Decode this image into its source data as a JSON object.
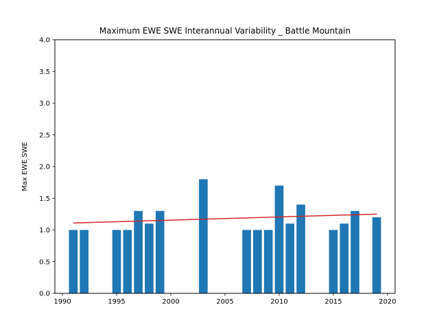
{
  "chart_data": {
    "type": "bar",
    "title": "Maximum EWE SWE Interannual Variability _ Battle Mountain",
    "xlabel": "",
    "ylabel": "Max EWE SWE",
    "xlim": [
      1989.3,
      2020.7
    ],
    "ylim": [
      0,
      4.0
    ],
    "x_ticks": [
      1990,
      1995,
      2000,
      2005,
      2010,
      2015,
      2020
    ],
    "y_ticks": [
      0.0,
      0.5,
      1.0,
      1.5,
      2.0,
      2.5,
      3.0,
      3.5,
      4.0
    ],
    "x_tick_labels": [
      "1990",
      "1995",
      "2000",
      "2005",
      "2010",
      "2015",
      "2020"
    ],
    "y_tick_labels": [
      "0.0",
      "0.5",
      "1.0",
      "1.5",
      "2.0",
      "2.5",
      "3.0",
      "3.5",
      "4.0"
    ],
    "bar_color": "#1f77b4",
    "bar_width": 0.8,
    "bars": [
      {
        "x": 1991,
        "value": 1.0
      },
      {
        "x": 1992,
        "value": 1.0
      },
      {
        "x": 1995,
        "value": 1.0
      },
      {
        "x": 1996,
        "value": 1.0
      },
      {
        "x": 1997,
        "value": 1.3
      },
      {
        "x": 1998,
        "value": 1.1
      },
      {
        "x": 1999,
        "value": 1.3
      },
      {
        "x": 2003,
        "value": 1.8
      },
      {
        "x": 2007,
        "value": 1.0
      },
      {
        "x": 2008,
        "value": 1.0
      },
      {
        "x": 2009,
        "value": 1.0
      },
      {
        "x": 2010,
        "value": 1.7
      },
      {
        "x": 2011,
        "value": 1.1
      },
      {
        "x": 2012,
        "value": 1.4
      },
      {
        "x": 2015,
        "value": 1.0
      },
      {
        "x": 2016,
        "value": 1.1
      },
      {
        "x": 2017,
        "value": 1.3
      },
      {
        "x": 2019,
        "value": 1.2
      }
    ],
    "trend_line": {
      "color": "#d62728",
      "points": [
        {
          "x": 1991,
          "y": 1.11
        },
        {
          "x": 2019,
          "y": 1.25
        }
      ]
    },
    "grid": false,
    "legend": "none"
  }
}
